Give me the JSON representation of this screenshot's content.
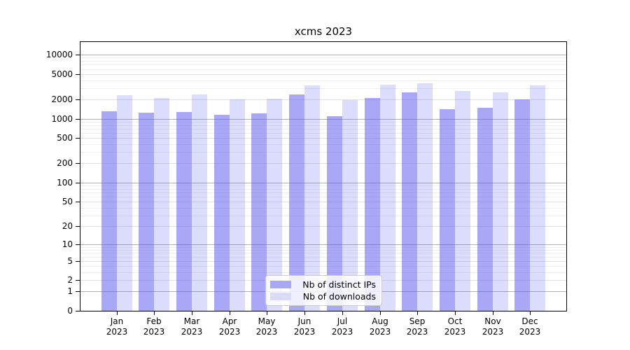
{
  "chart_data": {
    "type": "bar",
    "title": "xcms 2023",
    "categories": [
      "Jan",
      "Feb",
      "Mar",
      "Apr",
      "May",
      "Jun",
      "Jul",
      "Aug",
      "Sep",
      "Oct",
      "Nov",
      "Dec"
    ],
    "year": "2023",
    "series": [
      {
        "name": "Nb of distinct IPs",
        "color": "#a8a8f6",
        "fill": "rgba(88,88,240,0.52)",
        "values": [
          1320,
          1230,
          1290,
          1150,
          1210,
          2370,
          1110,
          2100,
          2560,
          1400,
          1490,
          1990
        ]
      },
      {
        "name": "Nb of downloads",
        "color": "#dbdbf9",
        "fill": "rgba(88,88,240,0.21)",
        "values": [
          2350,
          2130,
          2370,
          1990,
          2040,
          3290,
          1940,
          3400,
          3610,
          2740,
          2600,
          3320
        ]
      }
    ],
    "yscale": "log10(1+x)",
    "yticks": [
      0,
      1,
      2,
      5,
      10,
      20,
      50,
      100,
      200,
      500,
      1000,
      2000,
      5000,
      10000
    ],
    "ylim_log1p": [
      0,
      4.2
    ],
    "grid": {
      "major_color": "#b0b0b0",
      "mid_color": "#e0e0e0",
      "minor_color": "#eeeeee"
    },
    "legend_position": "lower center"
  }
}
